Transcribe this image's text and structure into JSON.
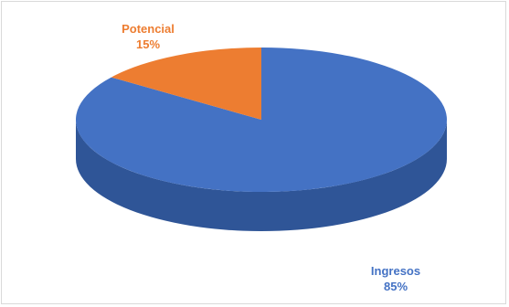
{
  "chart_data": {
    "type": "pie",
    "style": "3d",
    "title": "",
    "slices": [
      {
        "name": "Ingresos",
        "value": 85,
        "value_label": "85%",
        "color": "#4472c4",
        "side_color": "#2f5597"
      },
      {
        "name": "Potencial",
        "value": 15,
        "value_label": "15%",
        "color": "#ed7d31",
        "side_color": "#c55a11"
      }
    ],
    "legend": "none",
    "data_labels": "outside"
  }
}
